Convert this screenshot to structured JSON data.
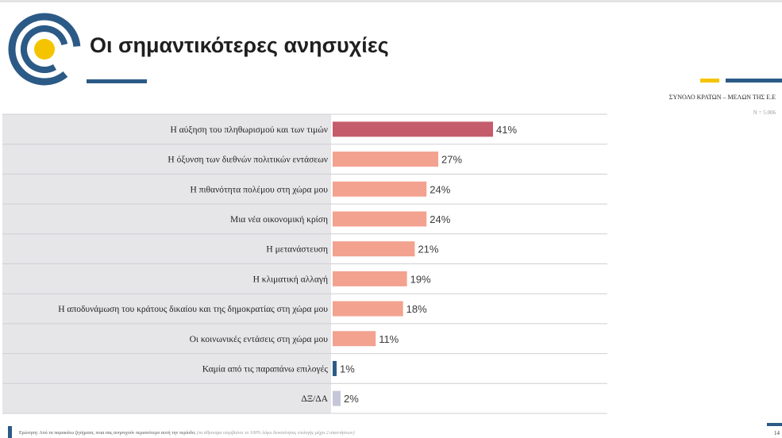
{
  "header": {
    "title": "Οι σημαντικότερες ανησυχίες",
    "subtitle": "ΣΥΝΟΛΟ ΚΡΑΤΩΝ – ΜΕΛΩΝ ΤΗΣ Ε.Ε",
    "sample": "N = 5.006"
  },
  "colors": {
    "top_bar": "#c55c6c",
    "bars": "#f3a28f",
    "none_bar": "#2c5a86",
    "dk_bar": "#c5c7d8",
    "label_band": "#e6e6e9",
    "accent_blue": "#2c5a86",
    "accent_yellow": "#f5c400"
  },
  "chart_data": {
    "type": "bar",
    "orientation": "horizontal",
    "categories": [
      "Η αύξηση του πληθωρισμού και των τιμών",
      "Η όξυνση των διεθνών πολιτικών εντάσεων",
      "Η πιθανότητα πολέμου στη χώρα μου",
      "Μια νέα οικονομική κρίση",
      "Η μετανάστευση",
      "Η κλιματική αλλαγή",
      "Η αποδυνάμωση του κράτους δικαίου και της δημοκρατίας στη χώρα μου",
      "Οι κοινωνικές εντάσεις στη χώρα μου",
      "Καμία από τις παραπάνω επιλογές",
      "ΔΞ/ΔΑ"
    ],
    "values": [
      41,
      27,
      24,
      24,
      21,
      19,
      18,
      11,
      1,
      2
    ],
    "value_labels": [
      "41%",
      "27%",
      "24%",
      "24%",
      "21%",
      "19%",
      "18%",
      "11%",
      "1%",
      "2%"
    ],
    "unit": "%",
    "grid": false,
    "legend": "none"
  },
  "footer": {
    "question": "Ερώτηση: Από τα παρακάτω ζητήματα, ποια σας ανησυχούν περισσότερο αυτή την περίοδο;",
    "note": "(τα άθροισμα υπερβαίνει το 100% λόγω δυνατότητας επιλογής μέχρι 2 απαντήσεων)",
    "page_number": "14"
  }
}
